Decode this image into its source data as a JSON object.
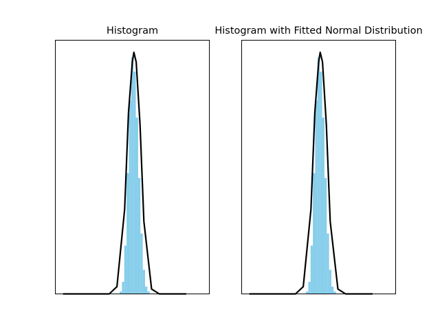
{
  "colors": {
    "hist_fill": "#87CEEB",
    "curve": "#000000",
    "axes": "#000000",
    "background": "#ffffff"
  },
  "chart_data": [
    {
      "type": "area",
      "title": "Histogram",
      "xlabel": "",
      "ylabel": "",
      "grid": false,
      "legend": "none",
      "ticks": "hidden",
      "xlim": [
        -1,
        1
      ],
      "ylim": [
        0,
        1.05
      ],
      "histogram": {
        "x": [
          -0.15,
          -0.12,
          -0.09,
          -0.06,
          -0.03,
          0.0,
          0.03,
          0.06,
          0.09,
          0.12,
          0.15,
          0.18,
          0.21,
          0.24
        ],
        "values": [
          0.01,
          0.05,
          0.2,
          0.5,
          0.8,
          0.98,
          0.92,
          0.73,
          0.48,
          0.25,
          0.1,
          0.03,
          0.01,
          0.0
        ]
      },
      "series": [
        {
          "x": [
            -0.9,
            -0.3,
            -0.2,
            -0.1,
            -0.05,
            0.0,
            0.02,
            0.05,
            0.1,
            0.15,
            0.25,
            0.35,
            0.7
          ],
          "values": [
            0.0,
            0.0,
            0.03,
            0.35,
            0.75,
            0.96,
            1.0,
            0.96,
            0.7,
            0.3,
            0.02,
            0.0,
            0.0
          ]
        }
      ]
    },
    {
      "type": "area",
      "title": "Histogram with Fitted Normal Distribution",
      "xlabel": "",
      "ylabel": "",
      "grid": false,
      "legend": "none",
      "ticks": "hidden",
      "xlim": [
        -1,
        1
      ],
      "ylim": [
        0,
        1.05
      ],
      "histogram": {
        "x": [
          -0.15,
          -0.12,
          -0.09,
          -0.06,
          -0.03,
          0.0,
          0.03,
          0.06,
          0.09,
          0.12,
          0.15,
          0.18,
          0.21,
          0.24
        ],
        "values": [
          0.01,
          0.05,
          0.2,
          0.5,
          0.8,
          0.98,
          0.92,
          0.73,
          0.48,
          0.25,
          0.1,
          0.03,
          0.01,
          0.0
        ]
      },
      "series": [
        {
          "x": [
            -0.9,
            -0.3,
            -0.2,
            -0.1,
            -0.05,
            0.0,
            0.02,
            0.05,
            0.1,
            0.15,
            0.25,
            0.35,
            0.7
          ],
          "values": [
            0.0,
            0.0,
            0.03,
            0.35,
            0.75,
            0.96,
            1.0,
            0.96,
            0.7,
            0.3,
            0.02,
            0.0,
            0.0
          ]
        }
      ]
    }
  ]
}
